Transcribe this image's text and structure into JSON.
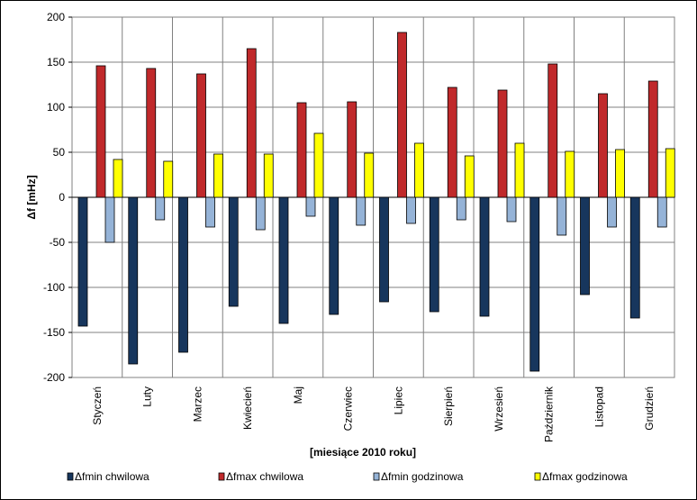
{
  "chart_data": {
    "type": "bar",
    "xlabel": "[miesiące 2010 roku]",
    "ylabel": "Δf [mHz]",
    "ylim": [
      -200,
      200
    ],
    "yticks": [
      200,
      150,
      100,
      50,
      0,
      -50,
      -100,
      -150,
      -200
    ],
    "grid": true,
    "legend_position": "bottom",
    "categories": [
      "Styczeń",
      "Luty",
      "Marzec",
      "Kwiecień",
      "Maj",
      "Czerwiec",
      "Lipiec",
      "Sierpień",
      "Wrzesień",
      "Październik",
      "Listopad",
      "Grudzień"
    ],
    "series": [
      {
        "name": "Δfmin  chwilowa",
        "color": "#17365D",
        "values": [
          -143,
          -185,
          -172,
          -121,
          -140,
          -130,
          -116,
          -127,
          -132,
          -193,
          -108,
          -134
        ]
      },
      {
        "name": "Δfmax chwilowa",
        "color": "#C0292B",
        "values": [
          146,
          143,
          137,
          165,
          105,
          106,
          183,
          122,
          119,
          148,
          115,
          129
        ]
      },
      {
        "name": "Δfmin  godzinowa",
        "color": "#95B3D7",
        "values": [
          -50,
          -25,
          -33,
          -36,
          -21,
          -31,
          -29,
          -25,
          -27,
          -42,
          -33,
          -33
        ]
      },
      {
        "name": "Δfmax godzinowa",
        "color": "#FFFF00",
        "values": [
          42,
          40,
          48,
          48,
          71,
          49,
          60,
          46,
          60,
          51,
          53,
          54
        ]
      }
    ]
  }
}
